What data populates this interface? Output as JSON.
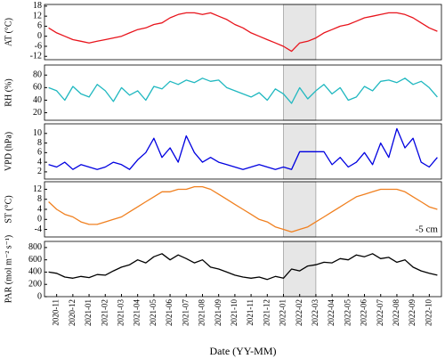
{
  "chart_data": {
    "type": "line",
    "xlabel": "Date (YY-MM)",
    "categories": [
      null,
      "2020-11",
      null,
      "2020-12",
      null,
      "2021-01",
      null,
      "2021-02",
      null,
      "2021-03",
      null,
      "2021-04",
      null,
      "2021-05",
      null,
      "2021-06",
      null,
      "2021-07",
      null,
      "2021-08",
      null,
      "2021-09",
      null,
      "2021-10",
      null,
      "2021-11",
      null,
      "2021-12",
      null,
      "2022-01",
      null,
      "2022-02",
      null,
      "2022-03",
      null,
      "2022-04",
      null,
      "2022-05",
      null,
      "2022-06",
      null,
      "2022-07",
      null,
      "2022-08",
      null,
      "2022-09",
      null,
      "2022-10",
      null
    ],
    "shade": {
      "from": "2022-01",
      "to": "2022-03"
    },
    "panels": [
      {
        "ylabel": "AT (°C)",
        "color": "#e8141c",
        "ylim": [
          -14,
          19
        ],
        "yticks": [
          -12,
          -6,
          0,
          6,
          12,
          18
        ],
        "values": [
          5,
          2,
          0,
          -2,
          -3,
          -4,
          -3,
          -2,
          -1,
          0,
          2,
          4,
          5,
          7,
          8,
          11,
          13,
          14,
          14,
          13,
          14,
          12,
          10,
          7,
          5,
          2,
          0,
          -2,
          -4,
          -6,
          -9,
          -4,
          -3,
          -1,
          2,
          4,
          6,
          7,
          9,
          11,
          12,
          13,
          14,
          14,
          13,
          11,
          8,
          5,
          3
        ]
      },
      {
        "ylabel": "RH (%)",
        "color": "#20b8c0",
        "ylim": [
          8,
          96
        ],
        "yticks": [
          20,
          40,
          60,
          80
        ],
        "values": [
          60,
          55,
          40,
          62,
          50,
          45,
          65,
          55,
          38,
          60,
          48,
          55,
          40,
          62,
          58,
          70,
          65,
          72,
          68,
          75,
          70,
          72,
          60,
          55,
          50,
          45,
          52,
          40,
          58,
          50,
          35,
          60,
          42,
          55,
          65,
          50,
          60,
          40,
          45,
          62,
          55,
          70,
          72,
          68,
          75,
          65,
          70,
          60,
          45
        ]
      },
      {
        "ylabel": "VPD (hPa)",
        "color": "#0000e0",
        "ylim": [
          0.5,
          12
        ],
        "yticks": [
          2,
          4,
          6,
          8,
          10
        ],
        "values": [
          3.5,
          3,
          4,
          2.5,
          3.5,
          3,
          2.5,
          3,
          4,
          3.5,
          2.5,
          4.5,
          6,
          9,
          5,
          7,
          4,
          9.5,
          6,
          4,
          5,
          4,
          3.5,
          3,
          2.5,
          3,
          3.5,
          3,
          2.5,
          3,
          2.5,
          6.2,
          6.2,
          6.2,
          6.2,
          3.5,
          5,
          3,
          4,
          6,
          3.5,
          8,
          5,
          11,
          7,
          9,
          4,
          3,
          5
        ]
      },
      {
        "ylabel": "ST (°C)",
        "color": "#f08020",
        "ylim": [
          -7,
          15
        ],
        "yticks": [
          -4,
          0,
          4,
          8,
          12
        ],
        "annotation": "-5 cm",
        "values": [
          7,
          4,
          2,
          1,
          -1,
          -2,
          -2,
          -1,
          0,
          1,
          3,
          5,
          7,
          9,
          11,
          11,
          12,
          12,
          13,
          13,
          12,
          10,
          8,
          6,
          4,
          2,
          0,
          -1,
          -3,
          -4,
          -5,
          -4,
          -3,
          -1,
          1,
          3,
          5,
          7,
          9,
          10,
          11,
          12,
          12,
          12,
          11,
          9,
          7,
          5,
          4
        ]
      },
      {
        "ylabel": "PAR (mol m⁻² s⁻¹)",
        "color": "#000000",
        "ylim": [
          0,
          900
        ],
        "yticks": [
          0,
          200,
          400,
          600,
          800
        ],
        "values": [
          400,
          380,
          320,
          300,
          330,
          310,
          360,
          350,
          420,
          480,
          520,
          600,
          550,
          650,
          700,
          600,
          680,
          620,
          550,
          600,
          480,
          450,
          400,
          350,
          320,
          300,
          320,
          280,
          330,
          300,
          450,
          420,
          500,
          520,
          560,
          550,
          620,
          600,
          680,
          650,
          700,
          620,
          640,
          560,
          600,
          480,
          420,
          380,
          350
        ]
      }
    ]
  }
}
